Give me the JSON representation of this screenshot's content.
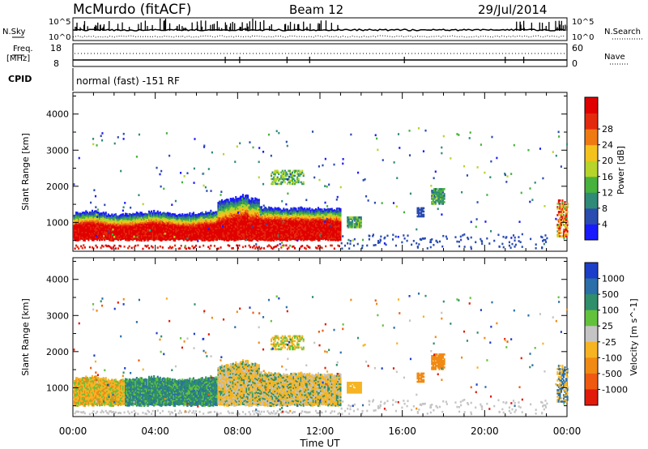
{
  "header": {
    "station": "McMurdo (fitACF)",
    "beam": "Beam 12",
    "date": "29/Jul/2014"
  },
  "top_panels": {
    "nsky_label": "N.Sky",
    "nsky_max": "10^5",
    "nsky_min": "10^0",
    "nsearch_label": "N.Search",
    "nsearch_max": "10^5",
    "nsearch_min": "10^0",
    "freq_label_1": "Freq.",
    "freq_label_2": "[MHz]",
    "freq_max": "18",
    "freq_min": "8",
    "nave_label": "Nave",
    "nave_max": "60",
    "nave_min": "0",
    "cpid_label": "CPID",
    "cpid_text": "normal (fast) -151 RF"
  },
  "chart_data": [
    {
      "type": "heatmap",
      "name": "power",
      "ylabel": "Slant Range [km]",
      "yticks": [
        "1000",
        "2000",
        "3000",
        "4000"
      ],
      "ylim": [
        200,
        4600
      ],
      "xticks": [
        "00:00",
        "04:00",
        "08:00",
        "12:00",
        "16:00",
        "20:00",
        "00:00"
      ],
      "xlim": [
        0,
        24
      ],
      "colorbar": {
        "label": "Power [dB]",
        "ticks": [
          "4",
          "8",
          "12",
          "16",
          "20",
          "24",
          "28"
        ],
        "colors": [
          "#1a1aff",
          "#2a4bb0",
          "#2f8a78",
          "#47b23c",
          "#b6d42a",
          "#f4c21d",
          "#f07a12",
          "#e42a0e",
          "#e00000"
        ]
      }
    },
    {
      "type": "heatmap",
      "name": "velocity",
      "ylabel": "Slant Range [km]",
      "yticks": [
        "1000",
        "2000",
        "3000",
        "4000"
      ],
      "ylim": [
        200,
        4600
      ],
      "xticks": [
        "00:00",
        "04:00",
        "08:00",
        "12:00",
        "16:00",
        "20:00",
        "00:00"
      ],
      "xlim": [
        0,
        24
      ],
      "xlabel": "Time UT",
      "colorbar": {
        "label": "Velocity [m s^-1]",
        "ticks": [
          "1000",
          "500",
          "100",
          "25",
          "-25",
          "-100",
          "-500",
          "-1000"
        ],
        "colors": [
          "#1c3ec9",
          "#2a6fa8",
          "#2e8f6a",
          "#63c23c",
          "#c4c4c4",
          "#f6b423",
          "#f08a14",
          "#ef5a10",
          "#e21a0a"
        ]
      }
    }
  ]
}
